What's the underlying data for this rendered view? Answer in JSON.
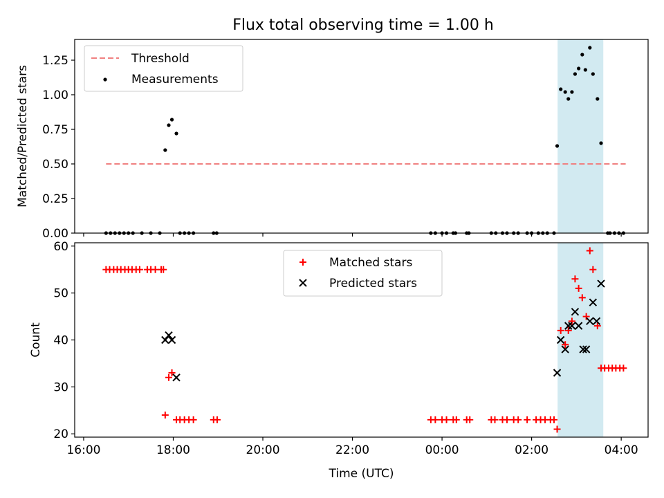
{
  "title": "Flux total observing time = 1.00 h",
  "colors": {
    "threshold": "#f08080",
    "measurement": "#000000",
    "matched": "#ff0000",
    "predicted": "#000000",
    "highlight": "#add8e6"
  },
  "chart_data": [
    {
      "type": "scatter",
      "ylabel": "Matched/Predicted stars",
      "x_axis": "time (hours UTC, values past 24 are the next day)",
      "xlim": [
        15.8,
        28.6
      ],
      "ylim": [
        0,
        1.4
      ],
      "yticks": [
        "0.00",
        "0.25",
        "0.50",
        "0.75",
        "1.00",
        "1.25"
      ],
      "yticks_values": [
        0,
        0.25,
        0.5,
        0.75,
        1.0,
        1.25
      ],
      "highlight_span": [
        26.58,
        27.6
      ],
      "threshold": {
        "y": 0.5,
        "x_range": [
          16.5,
          28.1
        ]
      },
      "legend": {
        "placement": "upper-left",
        "entries": [
          "Threshold",
          "Measurements"
        ]
      },
      "series": [
        {
          "name": "Measurements",
          "points": [
            [
              16.5,
              0
            ],
            [
              16.6,
              0
            ],
            [
              16.7,
              0
            ],
            [
              16.8,
              0
            ],
            [
              16.9,
              0
            ],
            [
              17.0,
              0
            ],
            [
              17.1,
              0
            ],
            [
              17.3,
              0
            ],
            [
              17.5,
              0
            ],
            [
              17.7,
              0
            ],
            [
              17.82,
              0.6
            ],
            [
              17.9,
              0.78
            ],
            [
              17.97,
              0.82
            ],
            [
              18.07,
              0.72
            ],
            [
              18.15,
              0
            ],
            [
              18.25,
              0
            ],
            [
              18.35,
              0
            ],
            [
              18.45,
              0
            ],
            [
              18.9,
              0
            ],
            [
              18.97,
              0
            ],
            [
              23.75,
              0
            ],
            [
              23.85,
              0
            ],
            [
              24.0,
              0
            ],
            [
              24.1,
              0
            ],
            [
              24.25,
              0
            ],
            [
              24.3,
              0
            ],
            [
              24.55,
              0
            ],
            [
              24.6,
              0
            ],
            [
              25.1,
              0
            ],
            [
              25.2,
              0
            ],
            [
              25.35,
              0
            ],
            [
              25.45,
              0
            ],
            [
              25.6,
              0
            ],
            [
              25.7,
              0
            ],
            [
              25.9,
              0
            ],
            [
              26.0,
              0
            ],
            [
              26.15,
              0
            ],
            [
              26.25,
              0
            ],
            [
              26.35,
              0
            ],
            [
              26.5,
              0
            ],
            [
              26.57,
              0.63
            ],
            [
              26.65,
              1.04
            ],
            [
              26.75,
              1.02
            ],
            [
              26.82,
              0.97
            ],
            [
              26.9,
              1.02
            ],
            [
              26.97,
              1.15
            ],
            [
              27.05,
              1.19
            ],
            [
              27.13,
              1.29
            ],
            [
              27.2,
              1.18
            ],
            [
              27.3,
              1.34
            ],
            [
              27.37,
              1.15
            ],
            [
              27.47,
              0.97
            ],
            [
              27.55,
              0.65
            ],
            [
              27.7,
              0
            ],
            [
              27.75,
              0
            ],
            [
              27.85,
              0
            ],
            [
              27.95,
              0
            ],
            [
              28.05,
              0
            ]
          ]
        }
      ]
    },
    {
      "type": "scatter",
      "xlabel": "Time (UTC)",
      "ylabel": "Count",
      "xlim": [
        15.8,
        28.6
      ],
      "ylim": [
        19.3,
        60.7
      ],
      "yticks": [
        "20",
        "30",
        "40",
        "50",
        "60"
      ],
      "yticks_values": [
        20,
        30,
        40,
        50,
        60
      ],
      "xticks": [
        "16:00",
        "18:00",
        "20:00",
        "22:00",
        "00:00",
        "02:00",
        "04:00"
      ],
      "xticks_values": [
        16,
        18,
        20,
        22,
        24,
        26,
        28
      ],
      "highlight_span": [
        26.58,
        27.6
      ],
      "legend": {
        "placement": "upper-center",
        "entries": [
          "Matched stars",
          "Predicted stars"
        ]
      },
      "series": [
        {
          "name": "Matched stars",
          "points": [
            [
              16.5,
              55
            ],
            [
              16.58,
              55
            ],
            [
              16.67,
              55
            ],
            [
              16.75,
              55
            ],
            [
              16.83,
              55
            ],
            [
              16.92,
              55
            ],
            [
              17.0,
              55
            ],
            [
              17.08,
              55
            ],
            [
              17.17,
              55
            ],
            [
              17.25,
              55
            ],
            [
              17.42,
              55
            ],
            [
              17.5,
              55
            ],
            [
              17.6,
              55
            ],
            [
              17.73,
              55
            ],
            [
              17.78,
              55
            ],
            [
              17.82,
              24
            ],
            [
              17.9,
              32
            ],
            [
              17.97,
              33
            ],
            [
              18.07,
              23
            ],
            [
              18.15,
              23
            ],
            [
              18.25,
              23
            ],
            [
              18.35,
              23
            ],
            [
              18.45,
              23
            ],
            [
              18.9,
              23
            ],
            [
              18.98,
              23
            ],
            [
              23.75,
              23
            ],
            [
              23.85,
              23
            ],
            [
              24.0,
              23
            ],
            [
              24.1,
              23
            ],
            [
              24.25,
              23
            ],
            [
              24.32,
              23
            ],
            [
              24.55,
              23
            ],
            [
              24.62,
              23
            ],
            [
              25.1,
              23
            ],
            [
              25.18,
              23
            ],
            [
              25.35,
              23
            ],
            [
              25.45,
              23
            ],
            [
              25.6,
              23
            ],
            [
              25.7,
              23
            ],
            [
              25.9,
              23
            ],
            [
              26.1,
              23
            ],
            [
              26.2,
              23
            ],
            [
              26.3,
              23
            ],
            [
              26.42,
              23
            ],
            [
              26.5,
              23
            ],
            [
              26.57,
              21
            ],
            [
              26.65,
              42
            ],
            [
              26.75,
              39
            ],
            [
              26.82,
              42
            ],
            [
              26.9,
              44
            ],
            [
              26.97,
              53
            ],
            [
              27.05,
              51
            ],
            [
              27.13,
              49
            ],
            [
              27.22,
              45
            ],
            [
              27.3,
              59
            ],
            [
              27.37,
              55
            ],
            [
              27.47,
              43
            ],
            [
              27.55,
              34
            ],
            [
              27.63,
              34
            ],
            [
              27.72,
              34
            ],
            [
              27.8,
              34
            ],
            [
              27.88,
              34
            ],
            [
              27.97,
              34
            ],
            [
              28.05,
              34
            ]
          ]
        },
        {
          "name": "Predicted stars",
          "points": [
            [
              17.82,
              40
            ],
            [
              17.9,
              41
            ],
            [
              17.97,
              40
            ],
            [
              18.07,
              32
            ],
            [
              26.57,
              33
            ],
            [
              26.65,
              40
            ],
            [
              26.75,
              38
            ],
            [
              26.82,
              43
            ],
            [
              26.9,
              43
            ],
            [
              26.97,
              46
            ],
            [
              27.05,
              43
            ],
            [
              27.15,
              38
            ],
            [
              27.22,
              38
            ],
            [
              27.3,
              44
            ],
            [
              27.37,
              48
            ],
            [
              27.45,
              44
            ],
            [
              27.55,
              52
            ]
          ]
        }
      ]
    }
  ]
}
